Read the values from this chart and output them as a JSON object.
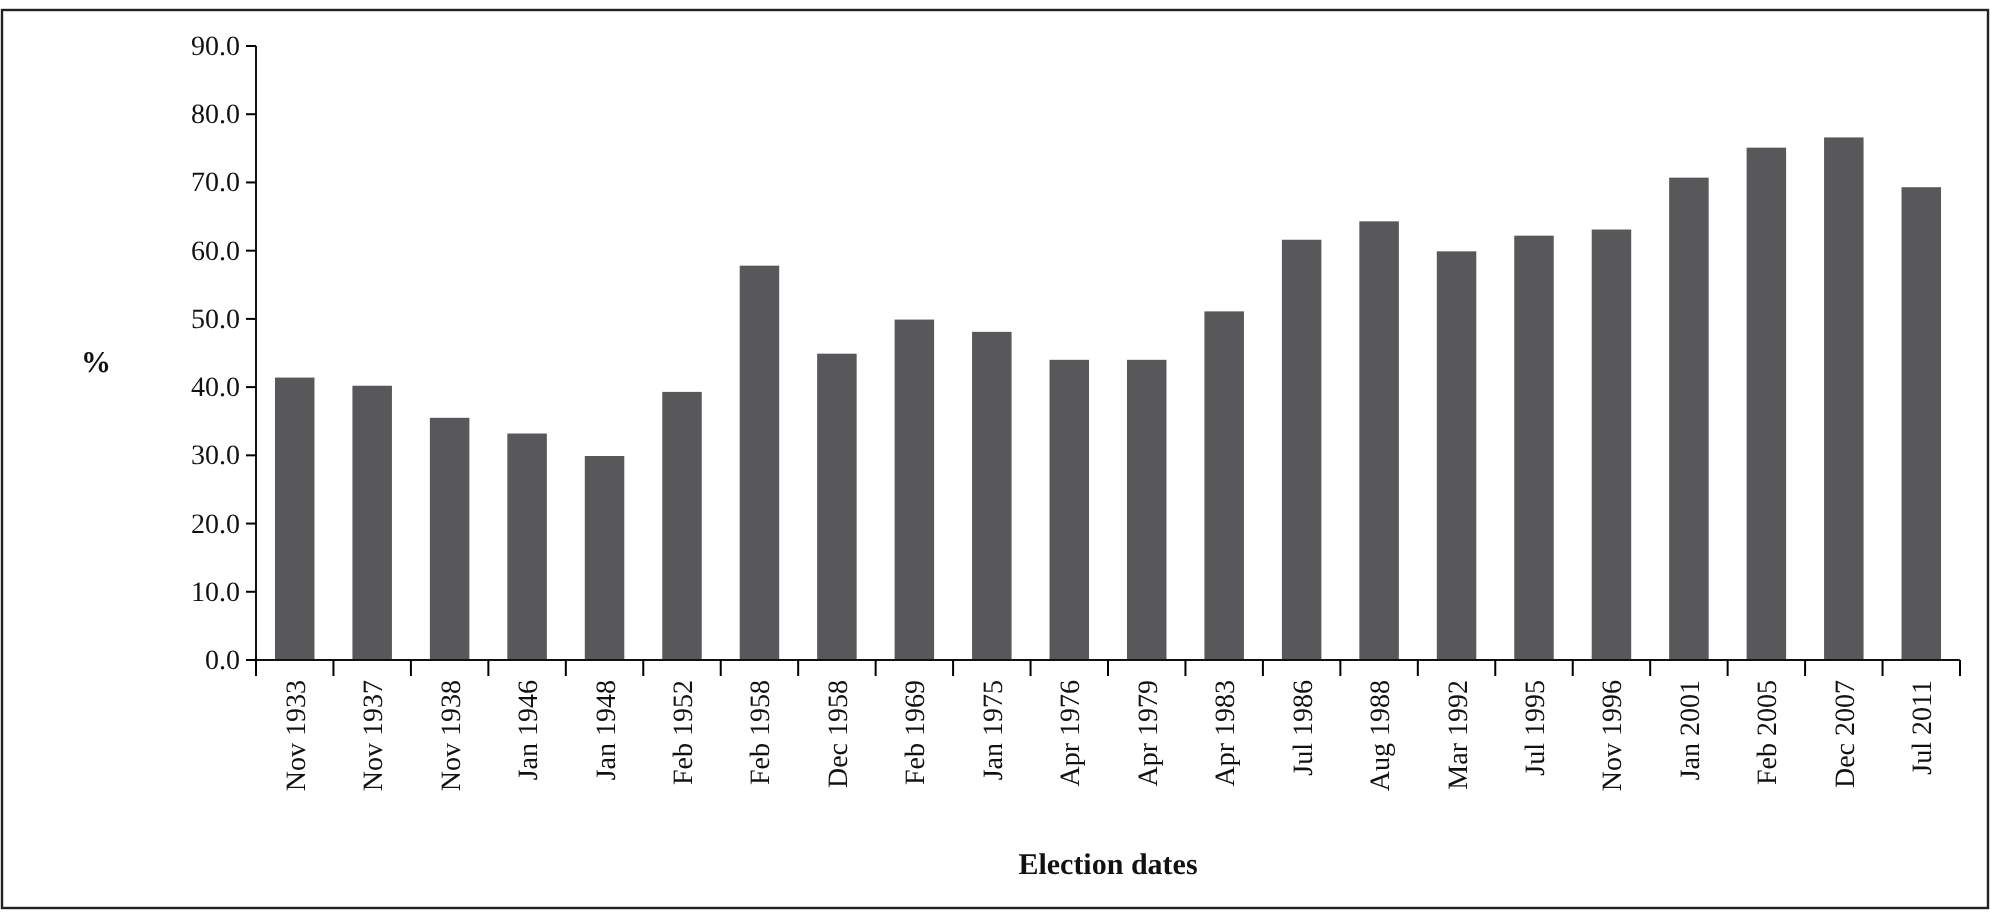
{
  "chart_data": {
    "type": "bar",
    "xlabel": "Election dates",
    "ylabel": "%",
    "categories": [
      "Nov 1933",
      "Nov 1937",
      "Nov 1938",
      "Jan 1946",
      "Jan 1948",
      "Feb 1952",
      "Feb 1958",
      "Dec 1958",
      "Feb 1969",
      "Jan 1975",
      "Apr 1976",
      "Apr 1979",
      "Apr 1983",
      "Jul 1986",
      "Aug 1988",
      "Mar 1992",
      "Jul 1995",
      "Nov 1996",
      "Jan 2001",
      "Feb 2005",
      "Dec 2007",
      "Jul 2011"
    ],
    "values": [
      41.4,
      40.2,
      35.5,
      33.2,
      29.9,
      39.3,
      57.8,
      44.9,
      49.9,
      48.1,
      44.0,
      44.0,
      51.1,
      61.6,
      64.3,
      59.9,
      62.2,
      63.1,
      70.7,
      75.1,
      76.6,
      69.3
    ],
    "color": "#58585a",
    "ylim": [
      0,
      90
    ],
    "yticks": [
      {
        "value": 0,
        "label": "0.0"
      },
      {
        "value": 10,
        "label": "10.0"
      },
      {
        "value": 20,
        "label": "20.0"
      },
      {
        "value": 30,
        "label": "30.0"
      },
      {
        "value": 40,
        "label": "40.0"
      },
      {
        "value": 50,
        "label": "50.0"
      },
      {
        "value": 60,
        "label": "60.0"
      },
      {
        "value": 70,
        "label": "70.0"
      },
      {
        "value": 80,
        "label": "80.0"
      },
      {
        "value": 90,
        "label": "90.0"
      }
    ],
    "grid": false
  }
}
